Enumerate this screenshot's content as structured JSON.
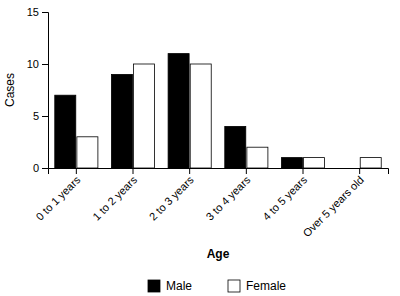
{
  "chart_data": {
    "type": "bar",
    "categories": [
      "0 to 1 years",
      "1 to 2 years",
      "2 to 3 years",
      "3 to 4 years",
      "4 to 5 years",
      "Over 5 years old"
    ],
    "series": [
      {
        "name": "Male",
        "color": "#000000",
        "values": [
          7,
          9,
          11,
          4,
          1,
          0
        ]
      },
      {
        "name": "Female",
        "color": "#ffffff",
        "values": [
          3,
          10,
          10,
          2,
          1,
          1
        ]
      }
    ],
    "xlabel": "Age",
    "ylabel": "Cases",
    "ylim": [
      0,
      15
    ],
    "yticks": [
      0,
      5,
      10,
      15
    ],
    "grid": false,
    "legend": "bottom"
  }
}
